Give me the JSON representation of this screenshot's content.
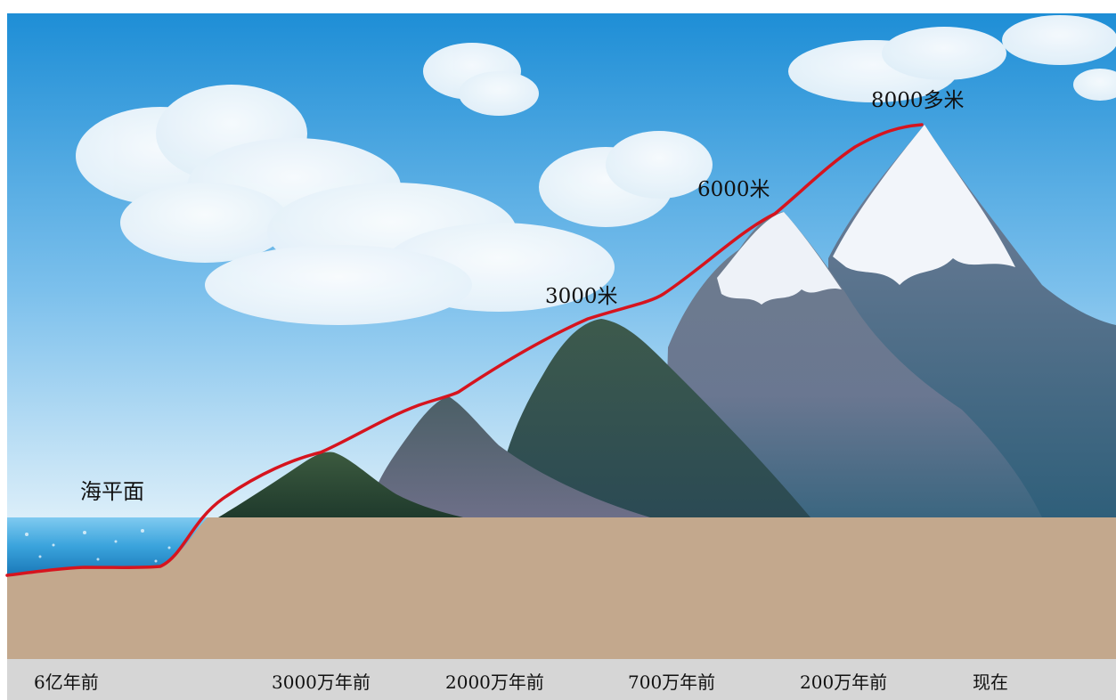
{
  "diagram": {
    "sea_level_label": "海平面",
    "elevation_labels": [
      {
        "text": "3000米",
        "meters": 3000
      },
      {
        "text": "6000米",
        "meters": 6000
      },
      {
        "text": "8000多米",
        "meters": 8000
      }
    ],
    "timeline": [
      "6亿年前",
      "3000万年前",
      "2000万年前",
      "700万年前",
      "200万年前",
      "现在"
    ],
    "colors": {
      "sky_top": "#1f8fd6",
      "sky_bottom": "#d8ecf8",
      "ground": "#c3a88d",
      "sea": "#3a9fd6",
      "uplift_line": "#d6141e",
      "timeline_bar": "#d6d6d6"
    }
  }
}
